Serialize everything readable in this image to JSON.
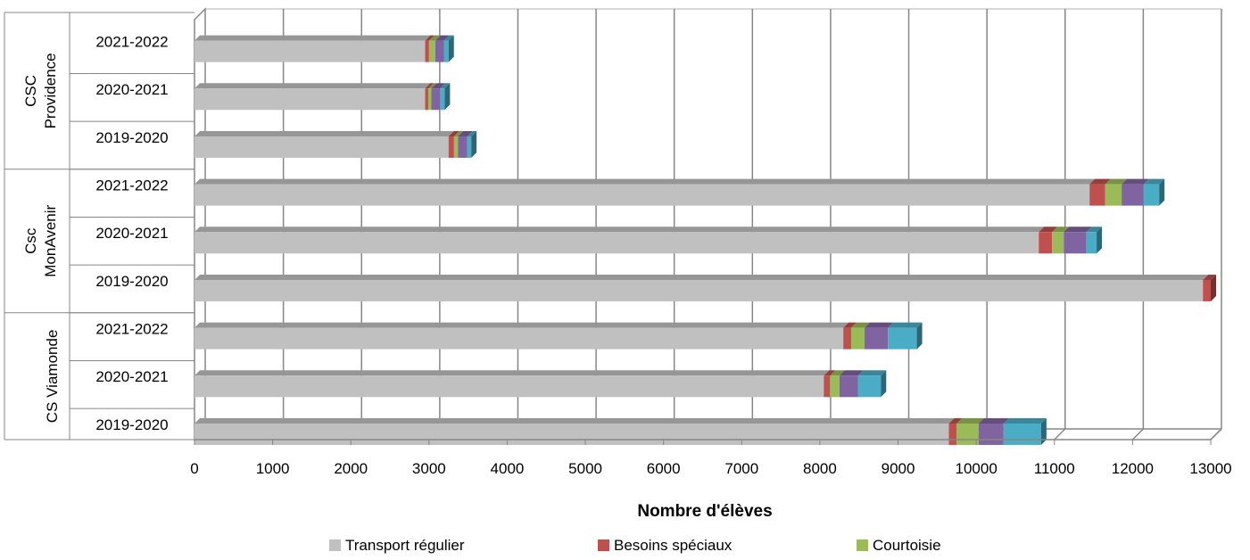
{
  "chart_data": {
    "type": "bar",
    "orientation": "horizontal",
    "stacked": true,
    "style": "3d",
    "xlabel": "Nombre d'élèves",
    "xlim": [
      0,
      13000
    ],
    "xticks": [
      0,
      1000,
      2000,
      3000,
      4000,
      5000,
      6000,
      7000,
      8000,
      9000,
      10000,
      11000,
      12000,
      13000
    ],
    "grid": true,
    "legend_position": "bottom",
    "groups": [
      {
        "label": "CSC Providence",
        "categories": [
          "2021-2022",
          "2020-2021",
          "2019-2020"
        ]
      },
      {
        "label": "Csc MonAvenir",
        "categories": [
          "2021-2022",
          "2020-2021",
          "2019-2020"
        ]
      },
      {
        "label": "CS Viamonde",
        "categories": [
          "2021-2022",
          "2020-2021",
          "2019-2020"
        ]
      }
    ],
    "series": [
      {
        "name": "Transport régulier",
        "color": "#c0c0c0",
        "values": [
          2950,
          2950,
          3250,
          11450,
          10800,
          12900,
          8300,
          8050,
          9650
        ]
      },
      {
        "name": "Besoins spéciaux",
        "color": "#c0504d",
        "values": [
          50,
          40,
          70,
          200,
          170,
          100,
          100,
          80,
          100
        ]
      },
      {
        "name": "Courtoisie",
        "color": "#9bbb59",
        "values": [
          80,
          40,
          50,
          210,
          150,
          0,
          170,
          120,
          280
        ]
      },
      {
        "name": "",
        "color": "#8064a2",
        "values": [
          110,
          110,
          120,
          280,
          290,
          0,
          300,
          240,
          320
        ]
      },
      {
        "name": "",
        "color": "#4bacc6",
        "values": [
          60,
          60,
          50,
          200,
          130,
          0,
          370,
          290,
          480
        ]
      }
    ]
  }
}
